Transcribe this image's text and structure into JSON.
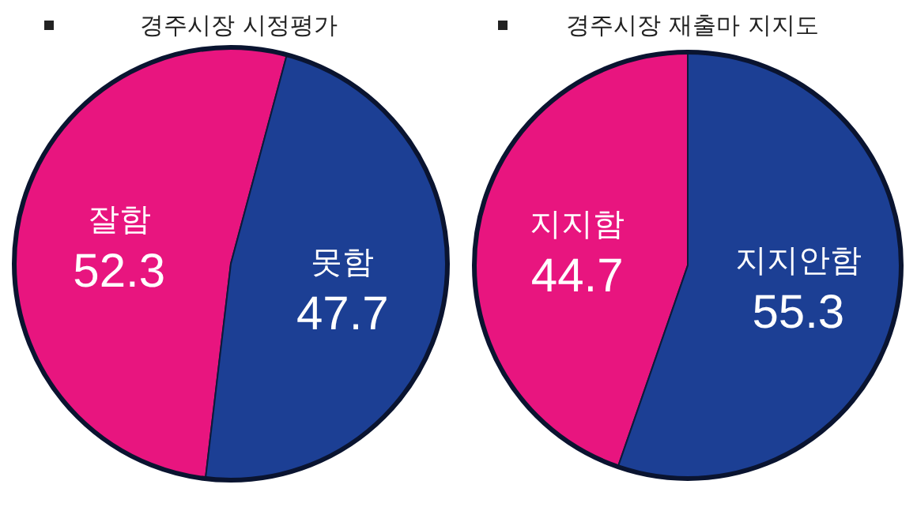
{
  "chart_data": [
    {
      "type": "pie",
      "title": "경주시장 시정평가",
      "categories": [
        "잘함",
        "못함"
      ],
      "values": [
        52.3,
        47.7
      ],
      "colors": [
        "#e8157f",
        "#1c3f94"
      ],
      "data_labels": true
    },
    {
      "type": "pie",
      "title": "경주시장 재출마 지지도",
      "categories": [
        "지지함",
        "지지안함"
      ],
      "values": [
        44.7,
        55.3
      ],
      "colors": [
        "#e8157f",
        "#1c3f94"
      ],
      "data_labels": true
    }
  ]
}
